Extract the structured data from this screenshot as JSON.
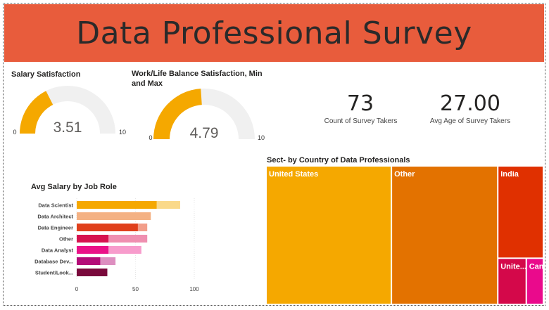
{
  "header": {
    "title": "Data Professional Survey",
    "color": "#e85c3c"
  },
  "gauge_salary": {
    "title": "Salary Satisfaction",
    "value_label": "3.51",
    "min_label": "0",
    "max_label": "10"
  },
  "gauge_worklife": {
    "title": "Work/Life Balance Satisfaction, Min and Max",
    "value_label": "4.79",
    "min_label": "0",
    "max_label": "10"
  },
  "kpi_count": {
    "value": "73",
    "label": "Count of Survey Takers"
  },
  "kpi_age": {
    "value": "27.00",
    "label": "Avg Age of Survey Takers"
  },
  "salary_chart": {
    "title": "Avg Salary by Job Role"
  },
  "treemap": {
    "title": "Sect- by Country of Data Professionals"
  },
  "chart_data": [
    {
      "type": "gauge",
      "title": "Salary Satisfaction",
      "value": 3.51,
      "min": 0,
      "max": 10,
      "color": "#f5a800",
      "track_color": "#f0f0f0"
    },
    {
      "type": "gauge",
      "title": "Work/Life Balance Satisfaction, Min and Max",
      "value": 4.79,
      "min": 0,
      "max": 10,
      "color": "#f5a800",
      "track_color": "#f0f0f0"
    },
    {
      "type": "bar",
      "orientation": "horizontal",
      "title": "Avg Salary by Job Role",
      "categories": [
        "Data Scientist",
        "Data Architect",
        "Data Engineer",
        "Other",
        "Data Analyst",
        "Database Dev...",
        "Student/Look..."
      ],
      "series": [
        {
          "values": [
            68,
            63,
            52,
            27,
            27,
            20,
            26
          ]
        },
        {
          "values": [
            88,
            63,
            60,
            60,
            55,
            33,
            26
          ]
        }
      ],
      "colors": [
        "#f5a800",
        "#f4b183",
        "#e0401c",
        "#d6134f",
        "#ea1288",
        "#b40c78",
        "#7a0a3c"
      ],
      "light_colors": [
        "#fad98a",
        "#f8ceb2",
        "#f29e8a",
        "#ef8fb0",
        "#f79ccc",
        "#dd8fc0",
        "#7a0a3c"
      ],
      "xticks": [
        0,
        50,
        100
      ],
      "xlim": [
        0,
        100
      ]
    },
    {
      "type": "treemap",
      "title": "Sect- by Country of Data Professionals",
      "labels": [
        "United States",
        "Other",
        "India",
        "Unite...",
        "Can..."
      ],
      "values": [
        33,
        28,
        8,
        2.5,
        1.5
      ],
      "colors": [
        "#f5a800",
        "#e37200",
        "#e03000",
        "#d4084a",
        "#ea0a8c"
      ]
    }
  ]
}
